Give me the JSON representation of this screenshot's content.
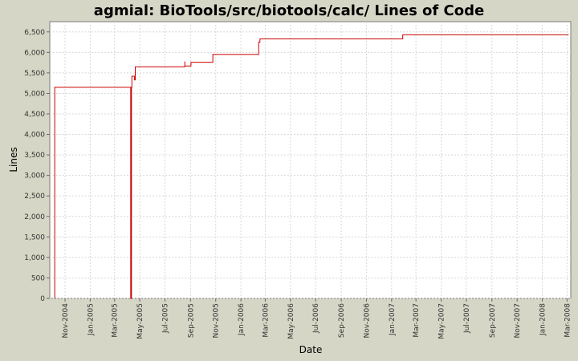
{
  "chart_data": {
    "type": "line",
    "title": "agmial: BioTools/src/biotools/calc/ Lines of Code",
    "xlabel": "Date",
    "ylabel": "Lines",
    "x_range": [
      "2004-09-25",
      "2008-03-10"
    ],
    "ylim": [
      0,
      6750
    ],
    "y_ticks": [
      0,
      500,
      1000,
      1500,
      2000,
      2500,
      3000,
      3500,
      4000,
      4500,
      5000,
      5500,
      6000,
      6500
    ],
    "y_tick_labels": [
      "0",
      "500",
      "1,000",
      "1,500",
      "2,000",
      "2,500",
      "3,000",
      "3,500",
      "4,000",
      "4,500",
      "5,000",
      "5,500",
      "6,000",
      "6,500"
    ],
    "x_ticks": [
      "2004-11-01",
      "2005-01-01",
      "2005-03-01",
      "2005-05-01",
      "2005-07-01",
      "2005-09-01",
      "2005-11-01",
      "2006-01-01",
      "2006-03-01",
      "2006-05-01",
      "2006-07-01",
      "2006-09-01",
      "2006-11-01",
      "2007-01-01",
      "2007-03-01",
      "2007-05-01",
      "2007-07-01",
      "2007-09-01",
      "2007-11-01",
      "2008-01-01",
      "2008-03-01"
    ],
    "x_tick_labels": [
      "Nov-2004",
      "Jan-2005",
      "Mar-2005",
      "May-2005",
      "Jul-2005",
      "Sep-2005",
      "Nov-2005",
      "Jan-2006",
      "Mar-2006",
      "May-2006",
      "Jul-2006",
      "Sep-2006",
      "Nov-2006",
      "Jan-2007",
      "Mar-2007",
      "May-2007",
      "Jul-2007",
      "Sep-2007",
      "Nov-2007",
      "Jan-2008",
      "Mar-2008"
    ],
    "grid": true,
    "line_color": "#cc0000",
    "series": [
      {
        "step": true,
        "x": [
          "2004-10-07",
          "2004-10-07",
          "2005-04-09",
          "2005-04-09",
          "2005-04-11",
          "2005-04-12",
          "2005-04-18",
          "2005-04-20",
          "2005-08-18",
          "2005-08-18",
          "2005-08-18",
          "2005-09-02",
          "2005-10-25",
          "2006-02-13",
          "2006-02-16",
          "2007-01-28",
          "2008-03-05"
        ],
        "y": [
          0,
          5150,
          5150,
          0,
          5150,
          5420,
          5330,
          5650,
          5650,
          5780,
          5670,
          5760,
          5950,
          6250,
          6330,
          6430,
          6430
        ]
      }
    ]
  }
}
